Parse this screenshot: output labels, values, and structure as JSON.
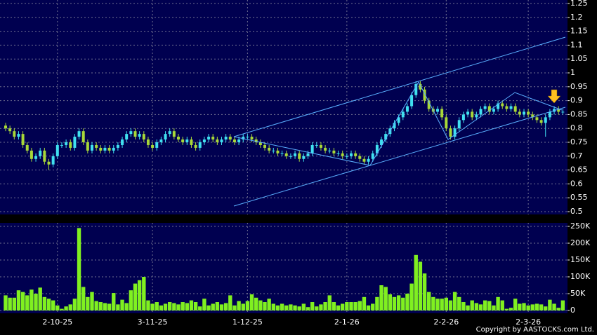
{
  "chart_data": [
    {
      "type": "candlestick",
      "open": [
        0.81,
        0.8,
        0.79,
        0.77,
        0.78,
        0.74,
        0.72,
        0.69,
        0.7,
        0.72,
        0.68,
        0.67,
        0.7,
        0.74,
        0.74,
        0.75,
        0.73,
        0.77,
        0.79,
        0.75,
        0.72,
        0.74,
        0.73,
        0.72,
        0.73,
        0.72,
        0.73,
        0.74,
        0.76,
        0.78,
        0.79,
        0.77,
        0.78,
        0.76,
        0.74,
        0.73,
        0.75,
        0.76,
        0.78,
        0.79,
        0.77,
        0.76,
        0.75,
        0.76,
        0.74,
        0.73,
        0.75,
        0.76,
        0.77,
        0.76,
        0.75,
        0.76,
        0.77,
        0.76,
        0.75,
        0.76,
        0.77,
        0.77,
        0.76,
        0.75,
        0.74,
        0.73,
        0.72,
        0.72,
        0.71,
        0.71,
        0.7,
        0.7,
        0.71,
        0.69,
        0.7,
        0.71,
        0.74,
        0.74,
        0.73,
        0.72,
        0.72,
        0.71,
        0.71,
        0.7,
        0.7,
        0.71,
        0.7,
        0.69,
        0.68,
        0.69,
        0.71,
        0.74,
        0.76,
        0.78,
        0.8,
        0.82,
        0.84,
        0.86,
        0.88,
        0.92,
        0.96,
        0.94,
        0.9,
        0.87,
        0.86,
        0.87,
        0.84,
        0.8,
        0.77,
        0.8,
        0.83,
        0.85,
        0.86,
        0.84,
        0.85,
        0.87,
        0.88,
        0.86,
        0.87,
        0.89,
        0.88,
        0.87,
        0.88,
        0.86,
        0.85,
        0.86,
        0.85,
        0.84,
        0.83,
        0.82,
        0.84,
        0.86,
        0.87,
        0.86
      ],
      "high": [
        0.82,
        0.81,
        0.8,
        0.79,
        0.79,
        0.75,
        0.73,
        0.71,
        0.73,
        0.73,
        0.69,
        0.71,
        0.75,
        0.75,
        0.76,
        0.76,
        0.78,
        0.8,
        0.8,
        0.76,
        0.75,
        0.75,
        0.74,
        0.74,
        0.74,
        0.74,
        0.75,
        0.77,
        0.79,
        0.8,
        0.8,
        0.79,
        0.79,
        0.77,
        0.75,
        0.76,
        0.77,
        0.79,
        0.8,
        0.8,
        0.78,
        0.77,
        0.77,
        0.77,
        0.75,
        0.76,
        0.77,
        0.78,
        0.78,
        0.77,
        0.77,
        0.78,
        0.78,
        0.77,
        0.77,
        0.78,
        0.78,
        0.78,
        0.77,
        0.76,
        0.75,
        0.74,
        0.73,
        0.73,
        0.72,
        0.72,
        0.71,
        0.72,
        0.72,
        0.71,
        0.72,
        0.75,
        0.75,
        0.75,
        0.74,
        0.73,
        0.73,
        0.72,
        0.72,
        0.71,
        0.72,
        0.72,
        0.71,
        0.7,
        0.7,
        0.72,
        0.75,
        0.77,
        0.79,
        0.81,
        0.83,
        0.85,
        0.87,
        0.89,
        0.93,
        0.97,
        0.97,
        0.95,
        0.91,
        0.88,
        0.88,
        0.88,
        0.85,
        0.81,
        0.81,
        0.84,
        0.86,
        0.87,
        0.87,
        0.86,
        0.88,
        0.89,
        0.89,
        0.88,
        0.9,
        0.9,
        0.89,
        0.89,
        0.89,
        0.87,
        0.87,
        0.87,
        0.86,
        0.85,
        0.84,
        0.85,
        0.87,
        0.88,
        0.88,
        0.87
      ],
      "low": [
        0.79,
        0.78,
        0.76,
        0.76,
        0.73,
        0.71,
        0.68,
        0.68,
        0.69,
        0.67,
        0.65,
        0.66,
        0.69,
        0.73,
        0.73,
        0.72,
        0.72,
        0.76,
        0.74,
        0.71,
        0.71,
        0.72,
        0.71,
        0.71,
        0.71,
        0.71,
        0.72,
        0.73,
        0.75,
        0.77,
        0.76,
        0.76,
        0.75,
        0.73,
        0.72,
        0.72,
        0.74,
        0.75,
        0.77,
        0.76,
        0.75,
        0.74,
        0.74,
        0.73,
        0.72,
        0.72,
        0.74,
        0.75,
        0.75,
        0.74,
        0.74,
        0.75,
        0.75,
        0.74,
        0.74,
        0.75,
        0.76,
        0.75,
        0.74,
        0.73,
        0.72,
        0.71,
        0.71,
        0.7,
        0.7,
        0.69,
        0.69,
        0.69,
        0.68,
        0.68,
        0.69,
        0.7,
        0.73,
        0.72,
        0.71,
        0.71,
        0.7,
        0.7,
        0.69,
        0.69,
        0.69,
        0.69,
        0.68,
        0.67,
        0.67,
        0.68,
        0.7,
        0.73,
        0.75,
        0.77,
        0.79,
        0.81,
        0.83,
        0.85,
        0.87,
        0.91,
        0.93,
        0.89,
        0.86,
        0.85,
        0.85,
        0.83,
        0.79,
        0.76,
        0.76,
        0.79,
        0.82,
        0.84,
        0.83,
        0.83,
        0.84,
        0.86,
        0.85,
        0.85,
        0.86,
        0.87,
        0.86,
        0.86,
        0.85,
        0.84,
        0.84,
        0.84,
        0.83,
        0.82,
        0.81,
        0.77,
        0.83,
        0.85,
        0.85,
        0.85
      ],
      "close": [
        0.8,
        0.79,
        0.77,
        0.78,
        0.74,
        0.72,
        0.69,
        0.7,
        0.72,
        0.68,
        0.67,
        0.7,
        0.74,
        0.74,
        0.75,
        0.73,
        0.77,
        0.79,
        0.75,
        0.72,
        0.74,
        0.73,
        0.72,
        0.73,
        0.72,
        0.73,
        0.74,
        0.76,
        0.78,
        0.79,
        0.77,
        0.78,
        0.76,
        0.74,
        0.73,
        0.75,
        0.76,
        0.78,
        0.79,
        0.77,
        0.76,
        0.75,
        0.76,
        0.74,
        0.73,
        0.75,
        0.76,
        0.77,
        0.76,
        0.75,
        0.76,
        0.77,
        0.76,
        0.75,
        0.76,
        0.77,
        0.77,
        0.76,
        0.75,
        0.74,
        0.73,
        0.72,
        0.72,
        0.71,
        0.71,
        0.7,
        0.7,
        0.71,
        0.69,
        0.7,
        0.71,
        0.74,
        0.74,
        0.73,
        0.72,
        0.72,
        0.71,
        0.71,
        0.7,
        0.7,
        0.71,
        0.7,
        0.69,
        0.68,
        0.69,
        0.71,
        0.74,
        0.76,
        0.78,
        0.8,
        0.82,
        0.84,
        0.86,
        0.88,
        0.92,
        0.96,
        0.94,
        0.9,
        0.87,
        0.86,
        0.87,
        0.84,
        0.8,
        0.77,
        0.8,
        0.83,
        0.85,
        0.86,
        0.84,
        0.85,
        0.87,
        0.88,
        0.86,
        0.87,
        0.89,
        0.88,
        0.87,
        0.88,
        0.86,
        0.85,
        0.86,
        0.85,
        0.84,
        0.83,
        0.82,
        0.84,
        0.86,
        0.87,
        0.86,
        0.86
      ],
      "up_color": "#40e0f0",
      "down_color": "#a8d838",
      "ylim": [
        0.5,
        1.25
      ],
      "yticks": [
        0.5,
        0.55,
        0.6,
        0.65,
        0.7,
        0.75,
        0.8,
        0.85,
        0.9,
        0.95,
        1,
        1.05,
        1.1,
        1.15,
        1.2,
        1.25
      ],
      "grid": true
    },
    {
      "type": "bar",
      "categories": [
        null,
        null,
        null,
        null,
        null,
        null,
        null,
        null,
        null,
        null,
        null,
        null,
        "2-10-25",
        null,
        null,
        null,
        null,
        null,
        null,
        null,
        null,
        null,
        null,
        null,
        null,
        null,
        null,
        null,
        null,
        null,
        null,
        null,
        null,
        null,
        "3-11-25",
        null,
        null,
        null,
        null,
        null,
        null,
        null,
        null,
        null,
        null,
        null,
        null,
        null,
        null,
        null,
        null,
        null,
        null,
        null,
        null,
        null,
        "1-12-25",
        null,
        null,
        null,
        null,
        null,
        null,
        null,
        null,
        null,
        null,
        null,
        null,
        null,
        null,
        null,
        null,
        null,
        null,
        null,
        null,
        null,
        null,
        "2-1-26",
        null,
        null,
        null,
        null,
        null,
        null,
        null,
        null,
        null,
        null,
        null,
        null,
        null,
        null,
        null,
        null,
        null,
        null,
        null,
        null,
        null,
        null,
        "2-2-26",
        null,
        null,
        null,
        null,
        null,
        null,
        null,
        null,
        null,
        null,
        null,
        null,
        null,
        null,
        null,
        null,
        null,
        null,
        "2-3-26",
        null,
        null,
        null,
        null,
        null,
        null,
        null,
        null
      ],
      "values": [
        45000,
        38000,
        38000,
        60000,
        55000,
        45000,
        62000,
        50000,
        68000,
        40000,
        35000,
        30000,
        15000,
        5000,
        12000,
        18000,
        35000,
        245000,
        70000,
        40000,
        55000,
        28000,
        25000,
        22000,
        20000,
        52000,
        18000,
        32000,
        22000,
        60000,
        80000,
        90000,
        100000,
        30000,
        20000,
        25000,
        15000,
        20000,
        25000,
        22000,
        18000,
        25000,
        22000,
        30000,
        25000,
        12000,
        35000,
        15000,
        20000,
        25000,
        18000,
        22000,
        45000,
        15000,
        28000,
        20000,
        28000,
        48000,
        38000,
        30000,
        25000,
        35000,
        20000,
        15000,
        20000,
        15000,
        18000,
        15000,
        12000,
        20000,
        10000,
        25000,
        12000,
        18000,
        25000,
        45000,
        25000,
        15000,
        20000,
        25000,
        25000,
        25000,
        28000,
        40000,
        15000,
        20000,
        40000,
        75000,
        70000,
        48000,
        40000,
        45000,
        38000,
        50000,
        80000,
        165000,
        145000,
        110000,
        55000,
        40000,
        35000,
        35000,
        38000,
        30000,
        55000,
        40000,
        25000,
        15000,
        30000,
        22000,
        18000,
        30000,
        28000,
        15000,
        40000,
        30000,
        5000,
        8000,
        35000,
        20000,
        22000,
        15000,
        18000,
        20000,
        18000,
        12000,
        32000,
        20000,
        8000,
        30000
      ],
      "color": "#80f020",
      "ylim": [
        0,
        250000
      ],
      "yticks": [
        0,
        {
          "value": 50000,
          "label": "50K"
        },
        {
          "value": 100000,
          "label": "100K"
        },
        {
          "value": 150000,
          "label": "150K"
        },
        {
          "value": 200000,
          "label": "200K"
        },
        {
          "value": 250000,
          "label": "250K"
        }
      ],
      "grid": true
    }
  ],
  "footer": "Copyright by AASTOCKS.com Ltd."
}
